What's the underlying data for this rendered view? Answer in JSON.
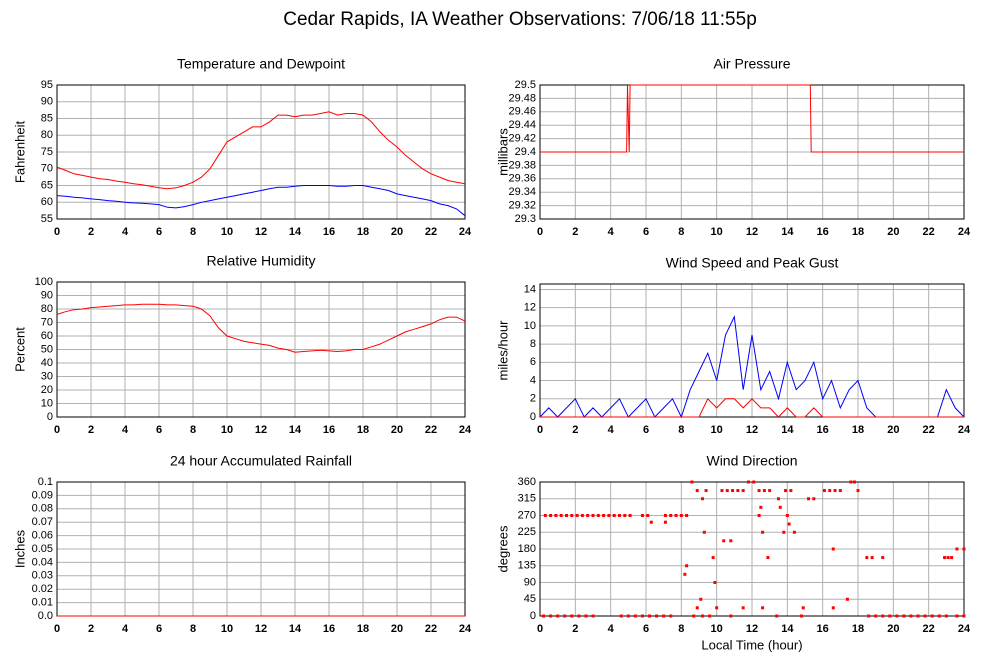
{
  "title": "Cedar Rapids, IA Weather Observations: 7/06/18 11:55p",
  "chart_data": [
    {
      "type": "line",
      "title": "Temperature and Dewpoint",
      "ylabel": "Fahrenheit",
      "xlim": [
        0,
        24
      ],
      "xticks": [
        0,
        2,
        4,
        6,
        8,
        10,
        12,
        14,
        16,
        18,
        20,
        22,
        24
      ],
      "ylim": [
        55,
        95
      ],
      "yticks": [
        55,
        60,
        65,
        70,
        75,
        80,
        85,
        90,
        95
      ],
      "grid": true,
      "x": [
        0,
        0.5,
        1,
        1.5,
        2,
        2.5,
        3,
        3.5,
        4,
        4.5,
        5,
        5.5,
        6,
        6.5,
        7,
        7.5,
        8,
        8.5,
        9,
        9.5,
        10,
        10.5,
        11,
        11.5,
        12,
        12.5,
        13,
        13.5,
        14,
        14.5,
        15,
        15.5,
        16,
        16.5,
        17,
        17.5,
        18,
        18.5,
        19,
        19.5,
        20,
        20.5,
        21,
        21.5,
        22,
        22.5,
        23,
        23.5,
        24
      ],
      "series": [
        {
          "color": "#ff0000",
          "values": [
            70.5,
            69.5,
            68.5,
            68,
            67.5,
            67,
            66.8,
            66.3,
            66,
            65.5,
            65.2,
            64.8,
            64.3,
            64,
            64.3,
            65,
            66,
            67.5,
            70,
            74,
            78,
            79.5,
            81,
            82.5,
            82.5,
            84,
            86,
            86,
            85.5,
            86,
            86,
            86.5,
            87,
            86,
            86.5,
            86.5,
            86,
            84,
            81,
            78.5,
            76.5,
            74,
            72,
            70,
            68.5,
            67.5,
            66.5,
            66,
            65.5
          ]
        },
        {
          "color": "#0000ff",
          "values": [
            62,
            61.8,
            61.5,
            61.3,
            61,
            60.8,
            60.5,
            60.3,
            60,
            59.8,
            59.7,
            59.5,
            59.3,
            58.5,
            58.3,
            58.7,
            59.3,
            60,
            60.5,
            61,
            61.5,
            62,
            62.5,
            63,
            63.5,
            64,
            64.5,
            64.5,
            64.8,
            65,
            65,
            65,
            65,
            64.8,
            64.8,
            65,
            65,
            64.5,
            64,
            63.5,
            62.5,
            62,
            61.5,
            61,
            60.5,
            59.5,
            59,
            58,
            56
          ]
        }
      ]
    },
    {
      "type": "line",
      "title": "Air Pressure",
      "ylabel": "millibars",
      "xlim": [
        0,
        24
      ],
      "xticks": [
        0,
        2,
        4,
        6,
        8,
        10,
        12,
        14,
        16,
        18,
        20,
        22,
        24
      ],
      "ylim": [
        29.3,
        29.5
      ],
      "yticks": [
        29.3,
        29.32,
        29.34,
        29.36,
        29.38,
        29.4,
        29.42,
        29.44,
        29.46,
        29.48,
        29.5
      ],
      "grid": true,
      "x": [
        0,
        4.9,
        4.95,
        5.05,
        5.1,
        5.15,
        15.3,
        15.35,
        24
      ],
      "series": [
        {
          "color": "#ff0000",
          "values": [
            29.4,
            29.4,
            29.5,
            29.4,
            29.5,
            29.5,
            29.5,
            29.4,
            29.4
          ]
        }
      ]
    },
    {
      "type": "line",
      "title": "Relative Humidity",
      "ylabel": "Percent",
      "xlim": [
        0,
        24
      ],
      "xticks": [
        0,
        2,
        4,
        6,
        8,
        10,
        12,
        14,
        16,
        18,
        20,
        22,
        24
      ],
      "ylim": [
        0,
        100
      ],
      "yticks": [
        0,
        10,
        20,
        30,
        40,
        50,
        60,
        70,
        80,
        90,
        100
      ],
      "grid": true,
      "x": [
        0,
        0.5,
        1,
        1.5,
        2,
        2.5,
        3,
        3.5,
        4,
        4.5,
        5,
        5.5,
        6,
        6.5,
        7,
        7.5,
        8,
        8.5,
        9,
        9.5,
        10,
        10.5,
        11,
        11.5,
        12,
        12.5,
        13,
        13.5,
        14,
        14.5,
        15,
        15.5,
        16,
        16.5,
        17,
        17.5,
        18,
        18.5,
        19,
        19.5,
        20,
        20.5,
        21,
        21.5,
        22,
        22.5,
        23,
        23.5,
        24
      ],
      "series": [
        {
          "color": "#ff0000",
          "values": [
            76,
            78,
            79.5,
            80,
            81,
            81.5,
            82,
            82.5,
            83,
            83,
            83.5,
            83.5,
            83.5,
            83,
            83,
            82.5,
            82,
            80,
            75,
            66,
            60,
            58,
            56,
            55,
            54,
            53,
            51,
            50,
            48,
            48.5,
            49,
            49.5,
            49,
            48.5,
            49,
            50,
            50,
            52,
            54,
            57,
            60,
            63,
            65,
            67,
            69,
            72,
            74,
            74,
            71
          ]
        }
      ]
    },
    {
      "type": "line",
      "title": "Wind Speed and Peak Gust",
      "ylabel": "miles/hour",
      "xlim": [
        0,
        24
      ],
      "xticks": [
        0,
        2,
        4,
        6,
        8,
        10,
        12,
        14,
        16,
        18,
        20,
        22,
        24
      ],
      "ylim": [
        0,
        14.6
      ],
      "yticks": [
        0,
        2,
        4,
        6,
        8,
        10,
        12,
        14
      ],
      "grid": true,
      "x": [
        0,
        0.5,
        1,
        1.5,
        2,
        2.5,
        3,
        3.5,
        4,
        4.5,
        5,
        5.5,
        6,
        6.5,
        7,
        7.5,
        8,
        8.5,
        9,
        9.5,
        10,
        10.5,
        11,
        11.5,
        12,
        12.5,
        13,
        13.5,
        14,
        14.5,
        15,
        15.5,
        16,
        16.5,
        17,
        17.5,
        18,
        18.5,
        19,
        19.5,
        20,
        20.5,
        21,
        21.5,
        22,
        22.5,
        23,
        23.5,
        24
      ],
      "series": [
        {
          "color": "#0000ff",
          "values": [
            0,
            1,
            0,
            1,
            2,
            0,
            1,
            0,
            1,
            2,
            0,
            1,
            2,
            0,
            1,
            2,
            0,
            3,
            5,
            7,
            4,
            9,
            11,
            3,
            9,
            3,
            5,
            2,
            6,
            3,
            4,
            6,
            2,
            4,
            1,
            3,
            4,
            1,
            0,
            0,
            0,
            0,
            0,
            0,
            0,
            0,
            3,
            1,
            0
          ]
        },
        {
          "color": "#ff0000",
          "values": [
            0,
            0,
            0,
            0,
            0,
            0,
            0,
            0,
            0,
            0,
            0,
            0,
            0,
            0,
            0,
            0,
            0,
            0,
            0,
            2,
            1,
            2,
            2,
            1,
            2,
            1,
            1,
            0,
            1,
            0,
            0,
            1,
            0,
            0,
            0,
            0,
            0,
            0,
            0,
            0,
            0,
            0,
            0,
            0,
            0,
            0,
            0,
            0,
            0
          ]
        }
      ]
    },
    {
      "type": "line",
      "title": "24 hour Accumulated Rainfall",
      "ylabel": "Inches",
      "xlim": [
        0,
        24
      ],
      "xticks": [
        0,
        2,
        4,
        6,
        8,
        10,
        12,
        14,
        16,
        18,
        20,
        22,
        24
      ],
      "ylim": [
        0,
        0.1
      ],
      "yticks": [
        {
          "value": 0,
          "label": "0.0"
        },
        0.01,
        0.02,
        0.03,
        0.04,
        0.05,
        0.06,
        0.07,
        0.08,
        0.09,
        0.1
      ],
      "grid": true,
      "x": [
        0,
        24
      ],
      "series": [
        {
          "color": "#ff0000",
          "values": [
            0,
            0
          ]
        }
      ]
    },
    {
      "type": "scatter",
      "title": "Wind Direction",
      "ylabel": "degrees",
      "xlabel": "Local Time (hour)",
      "xlim": [
        0,
        24
      ],
      "xticks": [
        0,
        2,
        4,
        6,
        8,
        10,
        12,
        14,
        16,
        18,
        20,
        22,
        24
      ],
      "ylim": [
        0,
        360
      ],
      "yticks": [
        0,
        45,
        90,
        135,
        180,
        225,
        270,
        315,
        360
      ],
      "grid": true,
      "color": "#ff0000",
      "x": [
        0.3,
        0.6,
        0.9,
        1.2,
        1.5,
        1.8,
        2.1,
        2.4,
        2.7,
        3.0,
        3.3,
        3.6,
        3.9,
        4.2,
        4.5,
        4.8,
        5.1,
        5.8,
        6.1,
        7.1,
        7.4,
        7.7,
        8.0,
        8.3,
        0.2,
        0.6,
        1.0,
        1.4,
        1.8,
        2.2,
        2.6,
        3.0,
        4.6,
        5.0,
        5.4,
        5.8,
        6.2,
        6.6,
        7.0,
        7.4,
        8.7,
        9.2,
        9.6,
        10.8,
        13.4,
        14.8,
        18.6,
        19.0,
        19.4,
        19.8,
        20.2,
        20.6,
        21.0,
        21.4,
        21.8,
        22.2,
        22.6,
        23.0,
        23.6,
        24.0,
        6.3,
        7.1,
        8.2,
        8.3,
        8.6,
        11.8,
        12.1,
        17.6,
        17.8,
        8.9,
        9.4,
        10.3,
        10.6,
        10.9,
        11.2,
        11.5,
        12.4,
        12.7,
        13.0,
        13.9,
        14.2,
        16.1,
        16.4,
        16.7,
        17.0,
        18.0,
        9.2,
        13.5,
        15.2,
        15.5,
        12.5,
        13.6,
        12.4,
        14.0,
        14.1,
        9.3,
        12.6,
        13.8,
        14.4,
        10.4,
        10.8,
        16.6,
        9.8,
        12.9,
        18.5,
        18.8,
        19.4,
        22.9,
        23.1,
        23.3,
        23.6,
        24.0,
        9.9,
        9.1,
        17.4,
        8.9,
        10.0,
        11.5,
        12.6,
        14.9,
        16.6
      ],
      "values": [
        270,
        270,
        270,
        270,
        270,
        270,
        270,
        270,
        270,
        270,
        270,
        270,
        270,
        270,
        270,
        270,
        270,
        270,
        270,
        270,
        270,
        270,
        270,
        270,
        0,
        0,
        0,
        0,
        0,
        0,
        0,
        0,
        0,
        0,
        0,
        0,
        0,
        0,
        0,
        0,
        0,
        0,
        0,
        0,
        0,
        0,
        0,
        0,
        0,
        0,
        0,
        0,
        0,
        0,
        0,
        0,
        0,
        0,
        0,
        0,
        252,
        252,
        112,
        135,
        360,
        360,
        360,
        360,
        360,
        337,
        337,
        337,
        337,
        337,
        337,
        337,
        337,
        337,
        337,
        337,
        337,
        337,
        337,
        337,
        337,
        337,
        315,
        315,
        315,
        315,
        292,
        292,
        270,
        270,
        247,
        225,
        225,
        225,
        225,
        202,
        202,
        180,
        157,
        157,
        157,
        157,
        157,
        157,
        157,
        157,
        180,
        180,
        90,
        45,
        45,
        22,
        22,
        22,
        22,
        22,
        22
      ]
    }
  ]
}
